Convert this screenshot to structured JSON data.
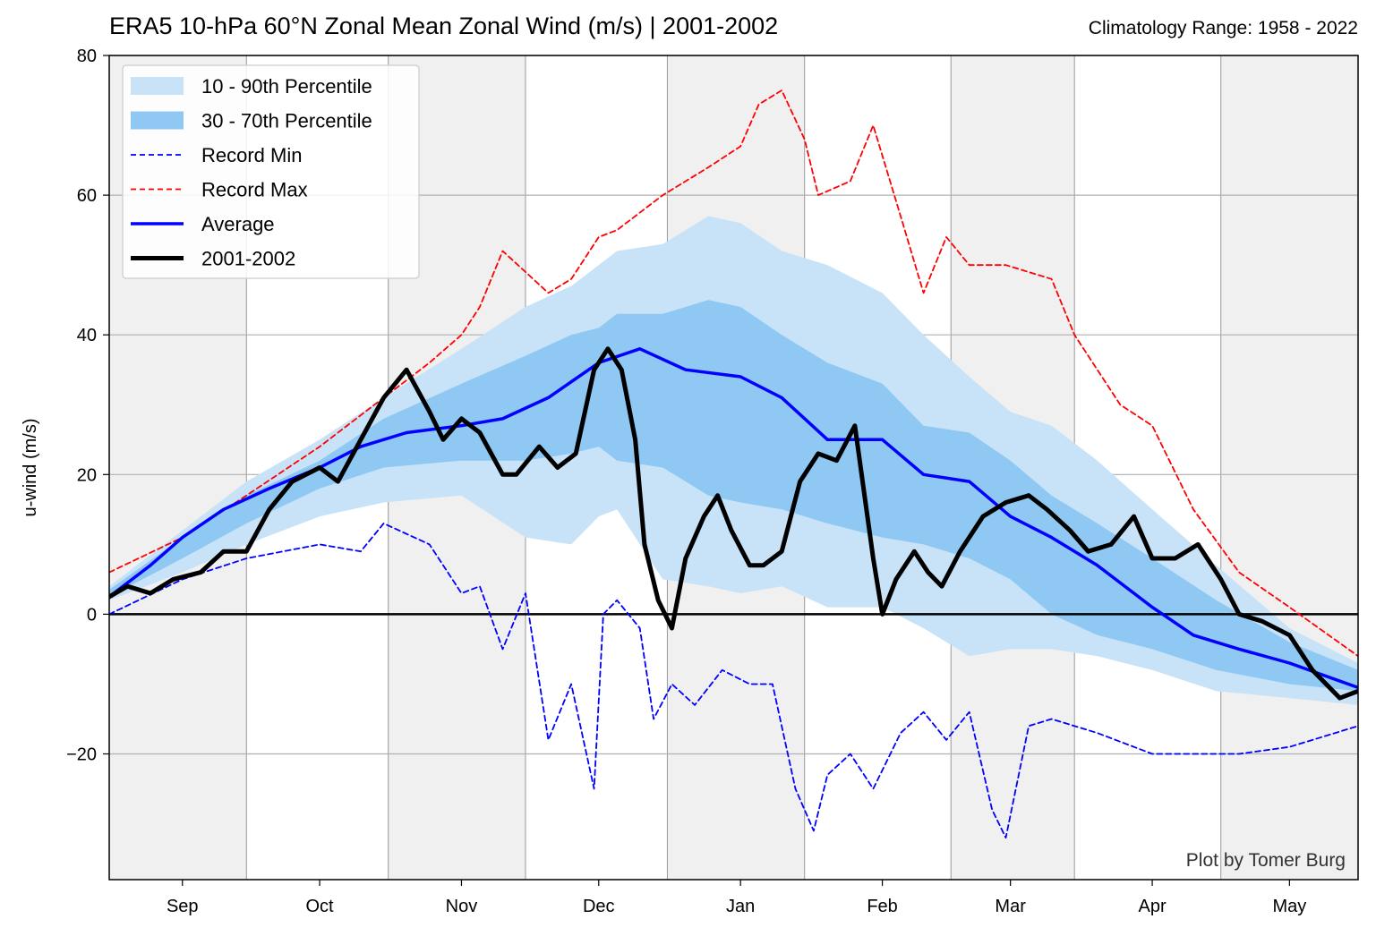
{
  "chart_data": {
    "type": "line",
    "title": "ERA5 10-hPa 60°N Zonal Mean Zonal Wind (m/s) | 2001-2002",
    "subtitle": "Climatology Range: 1958 - 2022",
    "ylabel": "u-wind (m/s)",
    "xlabel": "",
    "credit": "Plot by Tomer Burg",
    "x_range": [
      "2001-08-16",
      "2002-05-16"
    ],
    "ylim": [
      -38,
      80
    ],
    "yticks": [
      -20,
      0,
      20,
      40,
      60,
      80
    ],
    "ytick_labels": [
      "−20",
      "0",
      "20",
      "40",
      "60",
      "80"
    ],
    "month_labels": [
      {
        "label": "Sep",
        "date": "2001-09-01"
      },
      {
        "label": "Oct",
        "date": "2001-10-01"
      },
      {
        "label": "Nov",
        "date": "2001-11-01"
      },
      {
        "label": "Dec",
        "date": "2001-12-01"
      },
      {
        "label": "Jan",
        "date": "2002-01-01"
      },
      {
        "label": "Feb",
        "date": "2002-02-01"
      },
      {
        "label": "Mar",
        "date": "2002-03-01"
      },
      {
        "label": "Apr",
        "date": "2002-04-01"
      },
      {
        "label": "May",
        "date": "2002-05-01"
      }
    ],
    "shaded_periods": [
      [
        "2001-08-16",
        "2001-09-15"
      ],
      [
        "2001-10-16",
        "2001-11-15"
      ],
      [
        "2001-12-16",
        "2002-01-15"
      ],
      [
        "2002-02-16",
        "2002-03-15"
      ],
      [
        "2002-04-16",
        "2002-05-16"
      ]
    ],
    "grid": true,
    "legend_position": "top-left",
    "legend": [
      {
        "label": "10 - 90th Percentile",
        "style": "band",
        "color": "#c8e3f8"
      },
      {
        "label": "30 - 70th Percentile",
        "style": "band",
        "color": "#8ec8f3"
      },
      {
        "label": "Record Min",
        "style": "dashed",
        "color": "#0000ff"
      },
      {
        "label": "Record Max",
        "style": "dashed",
        "color": "#ff0000"
      },
      {
        "label": "Average",
        "style": "solid",
        "color": "#0000ff"
      },
      {
        "label": "2001-2002",
        "style": "solid",
        "color": "#000000"
      }
    ],
    "bands": {
      "dates": [
        "2001-08-16",
        "2001-09-01",
        "2001-09-15",
        "2001-10-01",
        "2001-10-15",
        "2001-11-01",
        "2001-11-15",
        "2001-11-25",
        "2001-12-01",
        "2001-12-05",
        "2001-12-15",
        "2001-12-25",
        "2002-01-01",
        "2002-01-10",
        "2002-01-20",
        "2002-02-01",
        "2002-02-10",
        "2002-02-20",
        "2002-03-01",
        "2002-03-10",
        "2002-03-20",
        "2002-04-01",
        "2002-04-15",
        "2002-05-01",
        "2002-05-16"
      ],
      "p10": [
        2,
        6,
        10,
        14,
        16,
        17,
        11,
        10,
        14,
        15,
        5,
        4,
        3,
        4,
        1,
        1,
        -2,
        -6,
        -5,
        -5,
        -6,
        -8,
        -11,
        -12,
        -13
      ],
      "p30": [
        2.5,
        8,
        13,
        18,
        21,
        22,
        22,
        23,
        24,
        22,
        21,
        17,
        16,
        15,
        13,
        11,
        10,
        8,
        5,
        0,
        -3,
        -5,
        -8,
        -10,
        -11
      ],
      "p70": [
        3.5,
        11,
        17,
        22,
        28,
        33,
        37,
        40,
        41,
        43,
        43,
        45,
        44,
        40,
        36,
        33,
        27,
        26,
        22,
        17,
        13,
        8,
        2,
        -4,
        -8
      ],
      "p90": [
        4,
        12,
        19,
        25,
        31,
        38,
        44,
        47,
        50,
        52,
        53,
        57,
        56,
        52,
        50,
        46,
        40,
        34,
        29,
        27,
        22,
        15,
        7,
        -2,
        -7
      ]
    },
    "series": [
      {
        "name": "Average",
        "color": "#0000ff",
        "dates": [
          "2001-08-16",
          "2001-08-25",
          "2001-09-01",
          "2001-09-10",
          "2001-09-20",
          "2001-10-01",
          "2001-10-10",
          "2001-10-20",
          "2001-11-01",
          "2001-11-10",
          "2001-11-20",
          "2001-12-01",
          "2001-12-10",
          "2001-12-20",
          "2002-01-01",
          "2002-01-10",
          "2002-01-20",
          "2002-02-01",
          "2002-02-10",
          "2002-02-20",
          "2002-03-01",
          "2002-03-10",
          "2002-03-20",
          "2002-04-01",
          "2002-04-10",
          "2002-04-20",
          "2002-05-01",
          "2002-05-16"
        ],
        "values": [
          2.5,
          7,
          11,
          15,
          18,
          21,
          24,
          26,
          27,
          28,
          31,
          36,
          38,
          35,
          34,
          31,
          25,
          25,
          20,
          19,
          14,
          11,
          7,
          1,
          -3,
          -5,
          -7,
          -10.5
        ]
      },
      {
        "name": "2001-2002",
        "color": "#000000",
        "dates": [
          "2001-08-16",
          "2001-08-20",
          "2001-08-25",
          "2001-08-30",
          "2001-09-05",
          "2001-09-10",
          "2001-09-15",
          "2001-09-20",
          "2001-09-25",
          "2001-10-01",
          "2001-10-05",
          "2001-10-10",
          "2001-10-15",
          "2001-10-20",
          "2001-10-25",
          "2001-10-28",
          "2001-11-01",
          "2001-11-05",
          "2001-11-10",
          "2001-11-13",
          "2001-11-18",
          "2001-11-22",
          "2001-11-26",
          "2001-11-30",
          "2001-12-03",
          "2001-12-06",
          "2001-12-09",
          "2001-12-11",
          "2001-12-14",
          "2001-12-17",
          "2001-12-20",
          "2001-12-24",
          "2001-12-27",
          "2001-12-30",
          "2002-01-03",
          "2002-01-06",
          "2002-01-10",
          "2002-01-14",
          "2002-01-18",
          "2002-01-22",
          "2002-01-26",
          "2002-01-30",
          "2002-02-01",
          "2002-02-04",
          "2002-02-08",
          "2002-02-11",
          "2002-02-14",
          "2002-02-18",
          "2002-02-23",
          "2002-02-28",
          "2002-03-05",
          "2002-03-09",
          "2002-03-14",
          "2002-03-18",
          "2002-03-23",
          "2002-03-28",
          "2002-04-01",
          "2002-04-06",
          "2002-04-11",
          "2002-04-16",
          "2002-04-20",
          "2002-04-25",
          "2002-05-01",
          "2002-05-06",
          "2002-05-12",
          "2002-05-16"
        ],
        "values": [
          2.5,
          4,
          3,
          5,
          6,
          9,
          9,
          15,
          19,
          21,
          19,
          25,
          31,
          35,
          29,
          25,
          28,
          26,
          20,
          20,
          24,
          21,
          23,
          35,
          38,
          35,
          25,
          10,
          2,
          -2,
          8,
          14,
          17,
          12,
          7,
          7,
          9,
          19,
          23,
          22,
          27,
          8,
          0,
          5,
          9,
          6,
          4,
          9,
          14,
          16,
          17,
          15,
          12,
          9,
          10,
          14,
          8,
          8,
          10,
          5,
          0,
          -1,
          -3,
          -8,
          -12,
          -11
        ]
      },
      {
        "name": "Record Max",
        "color": "#ff0000",
        "dash": true,
        "dates": [
          "2001-08-16",
          "2001-09-01",
          "2001-09-15",
          "2001-10-01",
          "2001-10-15",
          "2001-10-25",
          "2001-11-01",
          "2001-11-05",
          "2001-11-10",
          "2001-11-20",
          "2001-11-25",
          "2001-12-01",
          "2001-12-05",
          "2001-12-15",
          "2001-12-25",
          "2002-01-01",
          "2002-01-05",
          "2002-01-10",
          "2002-01-15",
          "2002-01-18",
          "2002-01-25",
          "2002-01-30",
          "2002-02-05",
          "2002-02-10",
          "2002-02-15",
          "2002-02-20",
          "2002-02-28",
          "2002-03-10",
          "2002-03-15",
          "2002-03-20",
          "2002-03-25",
          "2002-04-01",
          "2002-04-10",
          "2002-04-20",
          "2002-05-01",
          "2002-05-16"
        ],
        "values": [
          6,
          11,
          17,
          24,
          31,
          36,
          40,
          44,
          52,
          46,
          48,
          54,
          55,
          60,
          64,
          67,
          73,
          75,
          68,
          60,
          62,
          70,
          57,
          46,
          54,
          50,
          50,
          48,
          40,
          35,
          30,
          27,
          15,
          6,
          1,
          -6
        ]
      },
      {
        "name": "Record Min",
        "color": "#0000ff",
        "dash": true,
        "dates": [
          "2001-08-16",
          "2001-09-01",
          "2001-09-15",
          "2001-10-01",
          "2001-10-10",
          "2001-10-15",
          "2001-10-25",
          "2001-11-01",
          "2001-11-05",
          "2001-11-10",
          "2001-11-15",
          "2001-11-20",
          "2001-11-25",
          "2001-11-30",
          "2001-12-02",
          "2001-12-05",
          "2001-12-10",
          "2001-12-13",
          "2001-12-17",
          "2001-12-22",
          "2001-12-28",
          "2002-01-03",
          "2002-01-08",
          "2002-01-13",
          "2002-01-17",
          "2002-01-20",
          "2002-01-25",
          "2002-01-30",
          "2002-02-05",
          "2002-02-10",
          "2002-02-15",
          "2002-02-20",
          "2002-02-25",
          "2002-02-28",
          "2002-03-05",
          "2002-03-10",
          "2002-03-20",
          "2002-04-01",
          "2002-04-10",
          "2002-04-20",
          "2002-05-01",
          "2002-05-16"
        ],
        "values": [
          0,
          5,
          8,
          10,
          9,
          13,
          10,
          3,
          4,
          -5,
          3,
          -18,
          -10,
          -25,
          0,
          2,
          -2,
          -15,
          -10,
          -13,
          -8,
          -10,
          -10,
          -25,
          -31,
          -23,
          -20,
          -25,
          -17,
          -14,
          -18,
          -14,
          -28,
          -32,
          -16,
          -15,
          -17,
          -20,
          -20,
          -20,
          -19,
          -16
        ]
      }
    ]
  }
}
